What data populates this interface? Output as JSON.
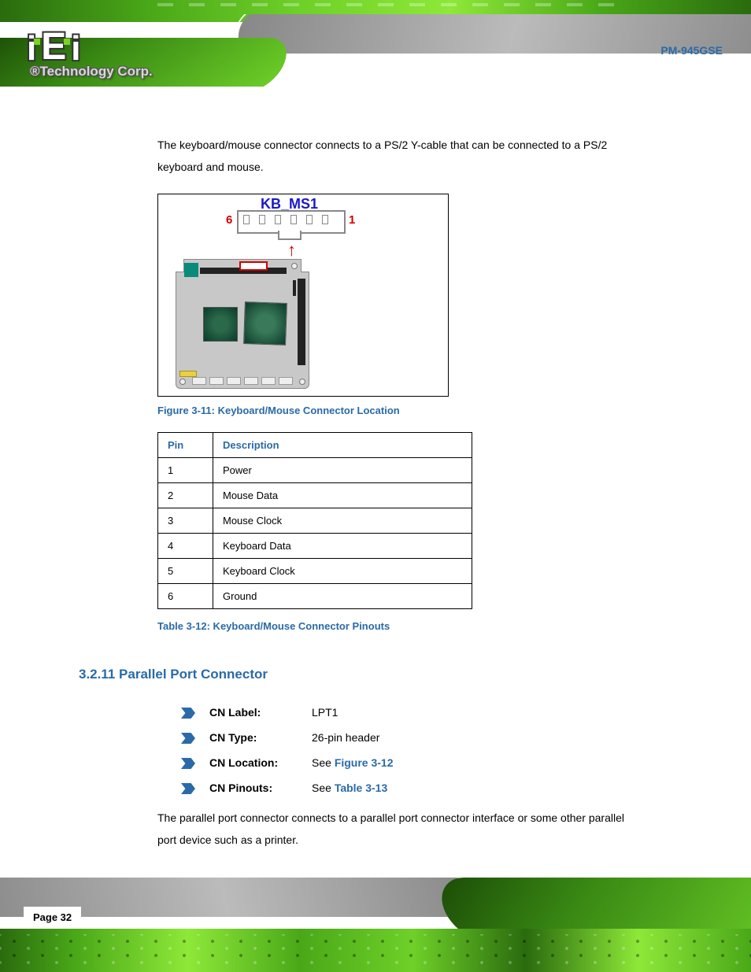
{
  "header": {
    "logo_sub": "®Technology Corp.",
    "product": "PM-945GSE"
  },
  "intro_para_1": "The keyboard/mouse connector connects to a PS/2 Y-cable that can be connected to a PS/2 keyboard and mouse.",
  "figure": {
    "label": "KB_MS1",
    "pin_left": "6",
    "pin_right": "1",
    "caption": "Figure 3-11: Keyboard/Mouse Connector Location"
  },
  "pin_table": {
    "headers": [
      "Pin",
      "Description"
    ],
    "rows": [
      [
        "1",
        "Power"
      ],
      [
        "2",
        "Mouse Data"
      ],
      [
        "3",
        "Mouse Clock"
      ],
      [
        "4",
        "Keyboard Data"
      ],
      [
        "5",
        "Keyboard Clock"
      ],
      [
        "6",
        "Ground"
      ]
    ],
    "caption": "Table 3-12: Keyboard/Mouse Connector Pinouts"
  },
  "section_heading": "3.2.11 Parallel Port Connector",
  "specs": [
    {
      "label": "CN Label:",
      "value": "LPT1"
    },
    {
      "label": "CN Type:",
      "value": "26-pin header"
    },
    {
      "label": "CN Location:",
      "value_prefix": "See ",
      "ref": "Figure 3-12"
    },
    {
      "label": "CN Pinouts:",
      "value_prefix": "See ",
      "ref": "Table 3-13"
    }
  ],
  "intro_para_2": "The parallel port connector connects to a parallel port connector interface or some other parallel port device such as a printer.",
  "page_number": "Page 32",
  "colors": {
    "link_blue": "#2a6aa8",
    "red": "#d00000",
    "conn_label_blue": "#1818cc"
  }
}
